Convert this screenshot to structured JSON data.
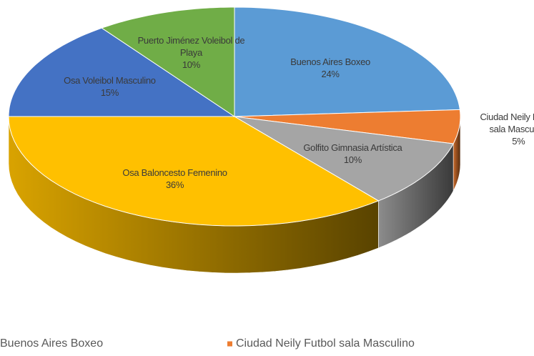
{
  "chart_data": {
    "type": "pie3d",
    "categories": [
      "Buenos Aires Boxeo",
      "Ciudad Neily Futbol sala Masculino",
      "Golfito Gimnasia Artística",
      "Osa Baloncesto Femenino",
      "Osa Voleibol Masculino",
      "Puerto Jiménez Voleibol de Playa"
    ],
    "values": [
      24,
      5,
      10,
      36,
      15,
      10
    ],
    "value_labels": [
      "24%",
      "5%",
      "10%",
      "36%",
      "15%",
      "10%"
    ],
    "colors": [
      "#5b9bd5",
      "#ed7d31",
      "#a5a5a5",
      "#ffc000",
      "#4472c4",
      "#70ad47"
    ],
    "legend": "bottom"
  }
}
